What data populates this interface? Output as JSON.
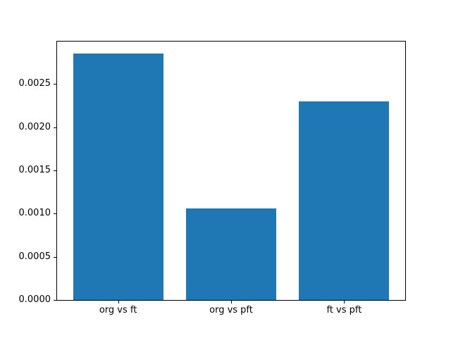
{
  "colors": {
    "bar": "#1f77b4",
    "spine": "#000000",
    "text": "#000000",
    "background": "#ffffff"
  },
  "chart_data": {
    "type": "bar",
    "categories": [
      "org vs ft",
      "org vs pft",
      "ft vs pft"
    ],
    "values": [
      0.00285,
      0.00106,
      0.0023
    ],
    "title": "",
    "xlabel": "",
    "ylabel": "",
    "bar_color": "#1f77b4",
    "bar_width": 0.8,
    "xlim": [
      -0.54,
      2.54
    ],
    "ylim": [
      0,
      0.00299
    ],
    "yticks": [
      0.0,
      0.0005,
      0.001,
      0.0015,
      0.002,
      0.0025
    ],
    "ytick_labels": [
      "0.0000",
      "0.0005",
      "0.0010",
      "0.0015",
      "0.0020",
      "0.0025"
    ],
    "grid": false,
    "legend": null
  }
}
